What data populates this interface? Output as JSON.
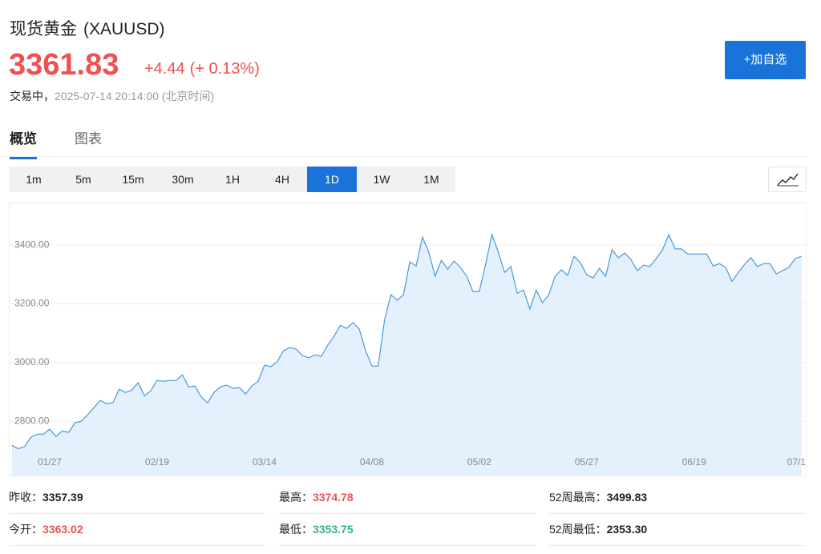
{
  "header": {
    "name": "现货黄金",
    "symbol": "(XAUUSD)",
    "price": "3361.83",
    "change": "+4.44",
    "change_pct": "(+ 0.13%)",
    "status": "交易中，",
    "time": "2025-07-14 20:14:00 (北京时间)"
  },
  "watch_button": "+加自选",
  "tabs": [
    "概览",
    "图表"
  ],
  "selected_tab": 0,
  "intervals": [
    "1m",
    "5m",
    "15m",
    "30m",
    "1H",
    "4H",
    "1D",
    "1W",
    "1M"
  ],
  "selected_interval": 6,
  "chart_data": {
    "type": "area",
    "color": "#4a98dc",
    "fill": "#e4f0fc",
    "grid": true,
    "categories": [
      null,
      null,
      null,
      null,
      null,
      null,
      "01/27",
      null,
      null,
      null,
      null,
      null,
      null,
      null,
      null,
      null,
      null,
      null,
      null,
      null,
      null,
      null,
      null,
      "02/19",
      null,
      null,
      null,
      null,
      null,
      null,
      null,
      null,
      null,
      null,
      null,
      null,
      null,
      null,
      null,
      null,
      "03/14",
      null,
      null,
      null,
      null,
      null,
      null,
      null,
      null,
      null,
      null,
      null,
      null,
      null,
      null,
      null,
      null,
      "04/08",
      null,
      null,
      null,
      null,
      null,
      null,
      null,
      null,
      null,
      null,
      null,
      null,
      null,
      null,
      null,
      null,
      "05/02",
      null,
      null,
      null,
      null,
      null,
      null,
      null,
      null,
      null,
      null,
      null,
      null,
      null,
      null,
      null,
      null,
      "05/27",
      null,
      null,
      null,
      null,
      null,
      null,
      null,
      null,
      null,
      null,
      null,
      null,
      null,
      null,
      null,
      null,
      "06/19",
      null,
      null,
      null,
      null,
      null,
      null,
      null,
      null,
      null,
      null,
      null,
      null,
      null,
      null,
      null,
      null,
      "07/1"
    ],
    "values": [
      2718,
      2707,
      2713,
      2745,
      2756,
      2756,
      2773,
      2748,
      2767,
      2762,
      2795,
      2800,
      2822,
      2846,
      2871,
      2860,
      2863,
      2909,
      2898,
      2906,
      2931,
      2887,
      2904,
      2939,
      2936,
      2939,
      2939,
      2958,
      2917,
      2920,
      2882,
      2863,
      2898,
      2917,
      2923,
      2912,
      2915,
      2893,
      2920,
      2936,
      2991,
      2986,
      3002,
      3040,
      3051,
      3046,
      3024,
      3016,
      3026,
      3021,
      3059,
      3089,
      3127,
      3116,
      3136,
      3114,
      3040,
      2988,
      2988,
      3144,
      3231,
      3212,
      3231,
      3343,
      3329,
      3427,
      3376,
      3294,
      3348,
      3318,
      3346,
      3324,
      3294,
      3242,
      3242,
      3335,
      3436,
      3376,
      3307,
      3327,
      3236,
      3247,
      3182,
      3247,
      3204,
      3231,
      3294,
      3316,
      3297,
      3362,
      3340,
      3299,
      3288,
      3321,
      3294,
      3384,
      3357,
      3373,
      3351,
      3313,
      3332,
      3327,
      3354,
      3384,
      3436,
      3387,
      3387,
      3370,
      3370,
      3370,
      3370,
      3329,
      3337,
      3324,
      3277,
      3307,
      3335,
      3357,
      3327,
      3337,
      3337,
      3302,
      3313,
      3324,
      3354,
      3362
    ],
    "ylim": [
      2615,
      3545
    ],
    "yticks": [
      {
        "value": 2800,
        "label": "2800.00"
      },
      {
        "value": 3000,
        "label": "3000.00"
      },
      {
        "value": 3200,
        "label": "3200.00"
      },
      {
        "value": 3400,
        "label": "3400.00"
      }
    ]
  },
  "stats": [
    {
      "label": "昨收：",
      "value": "3357.39",
      "tone": "neutral"
    },
    {
      "label": "最高：",
      "value": "3374.78",
      "tone": "up"
    },
    {
      "label": "52周最高：",
      "value": "3499.83",
      "tone": "neutral"
    },
    {
      "label": "今开：",
      "value": "3363.02",
      "tone": "up"
    },
    {
      "label": "最低：",
      "value": "3353.75",
      "tone": "down"
    },
    {
      "label": "52周最低：",
      "value": "2353.30",
      "tone": "neutral"
    }
  ]
}
